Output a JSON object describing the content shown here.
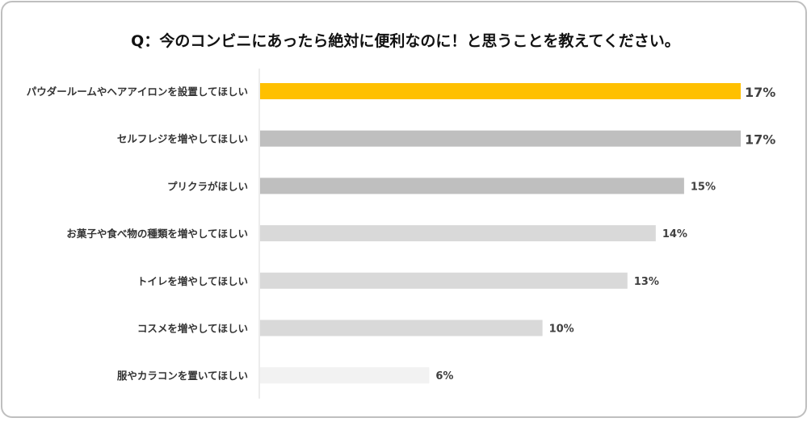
{
  "chart_data": {
    "type": "bar",
    "orientation": "horizontal",
    "title": "Q：今のコンビニにあったら絶対に便利なのに！と思うことを教えてください。",
    "categories": [
      "パウダールームやヘアアイロンを設置してほしい",
      "セルフレジを増やしてほしい",
      "プリクラがほしい",
      "お菓子や食べ物の種類を増やしてほしい",
      "トイレを増やしてほしい",
      "コスメを増やしてほしい",
      "服やカラコンを置いてほしい"
    ],
    "values": [
      17,
      17,
      15,
      14,
      13,
      10,
      6
    ],
    "labels": [
      "17%",
      "17%",
      "15%",
      "14%",
      "13%",
      "10%",
      "6%"
    ],
    "colors": [
      "#FFC000",
      "#BFBFBF",
      "#BFBFBF",
      "#D9D9D9",
      "#D9D9D9",
      "#D9D9D9",
      "#F2F2F2"
    ],
    "unit": "%",
    "xlim": [
      0,
      17
    ],
    "grid": false,
    "legend": "none"
  }
}
